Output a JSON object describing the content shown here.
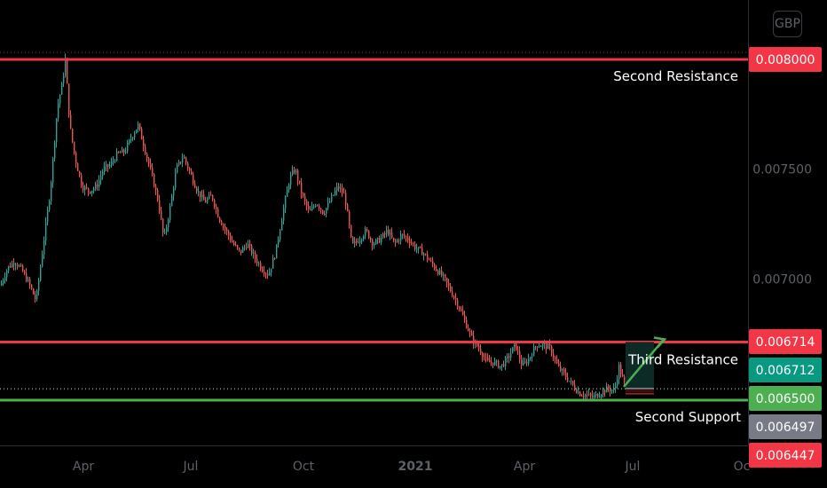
{
  "currency_button": "GBP",
  "chart_data": {
    "type": "candlestick",
    "ylim": [
      0.00639,
      0.00823
    ],
    "y_ticks": [
      "0.007500",
      "0.007000"
    ],
    "x_ticks": [
      "Apr",
      "Jul",
      "Oct",
      "2021",
      "Apr",
      "Jul",
      "Oc"
    ],
    "levels": [
      {
        "name": "Second Resistance",
        "value": 0.008,
        "label": "0.008000",
        "color": "#f23645"
      },
      {
        "name": "Third Resistance",
        "value": 0.006712,
        "label": "0.006712",
        "color": "#f23645"
      },
      {
        "name": "Second Support",
        "value": 0.006447,
        "label": "0.006447",
        "color": "#4caf50"
      }
    ],
    "price_badges": [
      {
        "label": "0.008000",
        "value": 0.008,
        "bg": "#f23645",
        "fg": "#ffffff"
      },
      {
        "label": "0.006714",
        "value": 0.006714,
        "bg": "#f23645",
        "fg": "#ffffff"
      },
      {
        "label": "0.006712",
        "value": 0.006712,
        "bg": "#089981",
        "fg": "#ffffff"
      },
      {
        "label": "0.006500",
        "value": 0.0065,
        "bg": "#4caf50",
        "fg": "#ffffff"
      },
      {
        "label": "0.006497",
        "value": 0.006497,
        "bg": "#787b86",
        "fg": "#ffffff"
      },
      {
        "label": "0.006447",
        "value": 0.006447,
        "bg": "#f23645",
        "fg": "#ffffff"
      }
    ],
    "current_price": 0.0065,
    "path_points": [
      [
        0,
        0.00697
      ],
      [
        8,
        0.00705
      ],
      [
        16,
        0.00708
      ],
      [
        24,
        0.00704
      ],
      [
        32,
        0.00698
      ],
      [
        40,
        0.0069
      ],
      [
        48,
        0.00715
      ],
      [
        56,
        0.0074
      ],
      [
        64,
        0.00778
      ],
      [
        70,
        0.0079
      ],
      [
        73,
        0.008
      ],
      [
        78,
        0.0077
      ],
      [
        84,
        0.00755
      ],
      [
        92,
        0.00742
      ],
      [
        100,
        0.0074
      ],
      [
        108,
        0.00742
      ],
      [
        116,
        0.0075
      ],
      [
        124,
        0.00752
      ],
      [
        132,
        0.00757
      ],
      [
        140,
        0.00758
      ],
      [
        148,
        0.00765
      ],
      [
        155,
        0.0077
      ],
      [
        162,
        0.0076
      ],
      [
        170,
        0.00748
      ],
      [
        178,
        0.00735
      ],
      [
        184,
        0.00718
      ],
      [
        190,
        0.0073
      ],
      [
        198,
        0.0075
      ],
      [
        206,
        0.00756
      ],
      [
        214,
        0.00748
      ],
      [
        222,
        0.0074
      ],
      [
        230,
        0.00735
      ],
      [
        238,
        0.00738
      ],
      [
        246,
        0.00728
      ],
      [
        254,
        0.00722
      ],
      [
        262,
        0.00716
      ],
      [
        270,
        0.00712
      ],
      [
        278,
        0.00716
      ],
      [
        286,
        0.0071
      ],
      [
        294,
        0.00705
      ],
      [
        302,
        0.00702
      ],
      [
        310,
        0.00712
      ],
      [
        318,
        0.0073
      ],
      [
        326,
        0.00746
      ],
      [
        332,
        0.0075
      ],
      [
        340,
        0.00738
      ],
      [
        348,
        0.0073
      ],
      [
        356,
        0.00735
      ],
      [
        364,
        0.0073
      ],
      [
        372,
        0.00736
      ],
      [
        380,
        0.00742
      ],
      [
        388,
        0.00738
      ],
      [
        396,
        0.00715
      ],
      [
        404,
        0.00718
      ],
      [
        412,
        0.00722
      ],
      [
        420,
        0.00716
      ],
      [
        428,
        0.00718
      ],
      [
        436,
        0.00722
      ],
      [
        444,
        0.00716
      ],
      [
        452,
        0.0072
      ],
      [
        460,
        0.00718
      ],
      [
        468,
        0.00714
      ],
      [
        476,
        0.00712
      ],
      [
        484,
        0.00708
      ],
      [
        492,
        0.00704
      ],
      [
        500,
        0.007
      ],
      [
        508,
        0.00694
      ],
      [
        516,
        0.00688
      ],
      [
        524,
        0.0068
      ],
      [
        532,
        0.00672
      ],
      [
        540,
        0.00668
      ],
      [
        548,
        0.00662
      ],
      [
        556,
        0.00662
      ],
      [
        564,
        0.0066
      ],
      [
        572,
        0.00664
      ],
      [
        580,
        0.0067
      ],
      [
        588,
        0.0066
      ],
      [
        596,
        0.00664
      ],
      [
        604,
        0.0067
      ],
      [
        612,
        0.0067
      ],
      [
        620,
        0.00668
      ],
      [
        628,
        0.0066
      ],
      [
        636,
        0.00656
      ],
      [
        644,
        0.00652
      ],
      [
        652,
        0.00648
      ],
      [
        660,
        0.00647
      ],
      [
        668,
        0.00646
      ],
      [
        676,
        0.00648
      ],
      [
        684,
        0.0065
      ],
      [
        692,
        0.00649
      ],
      [
        697,
        0.0066
      ],
      [
        703,
        0.00652
      ],
      [
        706,
        0.0065
      ]
    ],
    "annotations": [
      {
        "text": "Second Resistance",
        "anchor_value": 0.008
      },
      {
        "text": "Third Resistance",
        "anchor_value": 0.006712
      },
      {
        "text": "Second Support",
        "anchor_value": 0.006447
      }
    ],
    "projection": {
      "from_value": 0.0065,
      "target_value": 0.006712,
      "stop_value": 0.006447,
      "arrow_color": "#4caf50",
      "profit_zone_color": "#0c2a26",
      "loss_zone_color": "#3a0f12"
    }
  }
}
